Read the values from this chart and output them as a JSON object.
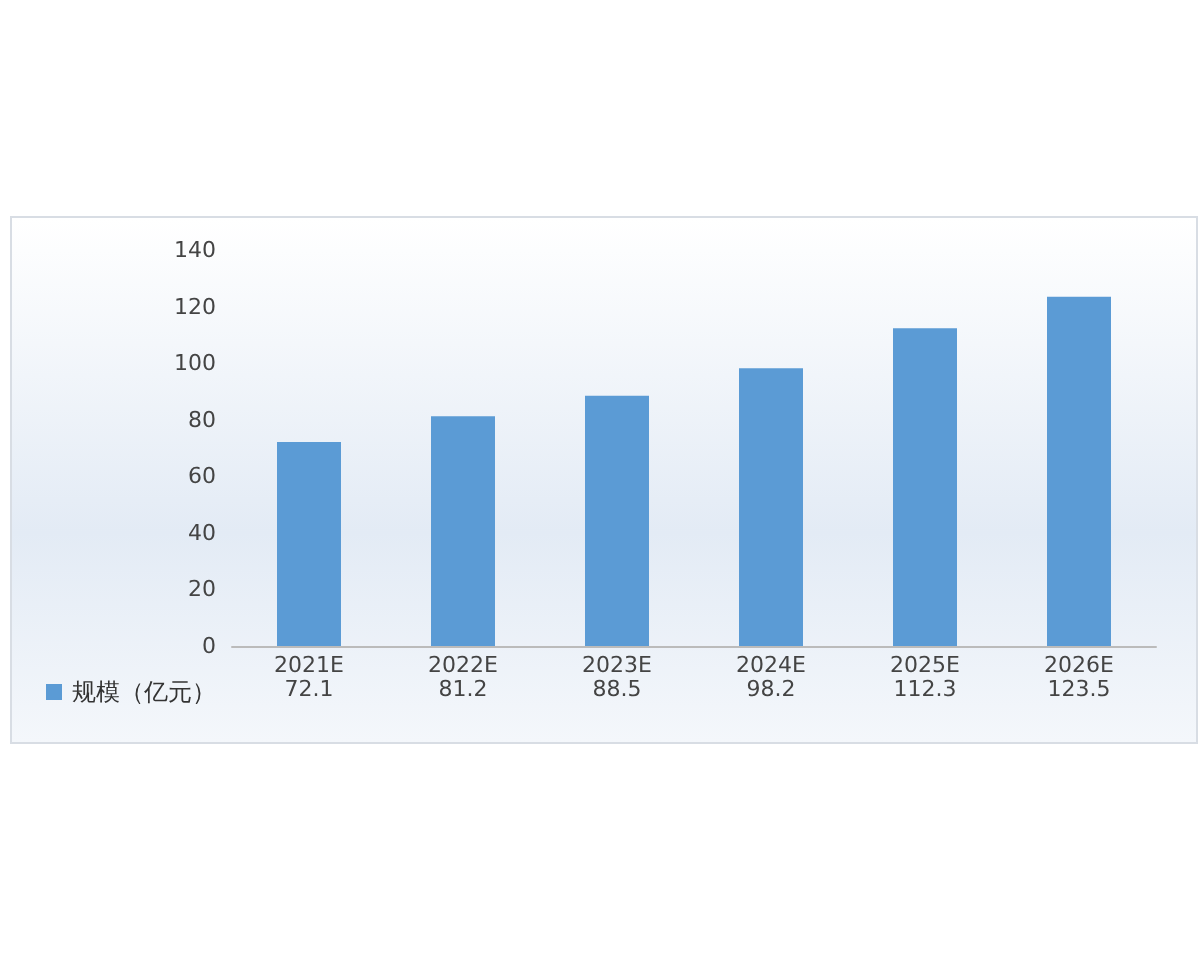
{
  "chart_data": {
    "type": "bar",
    "categories": [
      "2021E",
      "2022E",
      "2023E",
      "2024E",
      "2025E",
      "2026E"
    ],
    "series": [
      {
        "name": "规模（亿元）",
        "color": "#5b9bd5",
        "values": [
          72.1,
          81.2,
          88.5,
          98.2,
          112.3,
          123.5
        ]
      }
    ],
    "ylim": [
      0,
      140
    ],
    "yticks": [
      0,
      20,
      40,
      60,
      80,
      100,
      120,
      140
    ],
    "data_labels": true,
    "legend": "bottom left"
  }
}
